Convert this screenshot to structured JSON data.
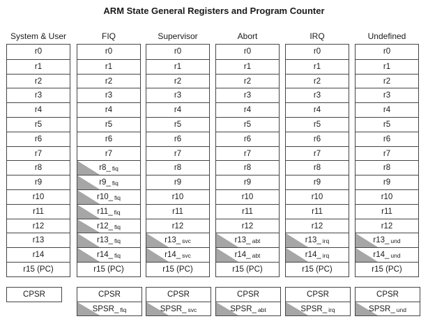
{
  "title": "ARM State General Registers and Program Counter",
  "modes": [
    {
      "name": "System & User",
      "registers": [
        {
          "base": "r0",
          "suffix": "",
          "banked": false
        },
        {
          "base": "r1",
          "suffix": "",
          "banked": false
        },
        {
          "base": "r2",
          "suffix": "",
          "banked": false
        },
        {
          "base": "r3",
          "suffix": "",
          "banked": false
        },
        {
          "base": "r4",
          "suffix": "",
          "banked": false
        },
        {
          "base": "r5",
          "suffix": "",
          "banked": false
        },
        {
          "base": "r6",
          "suffix": "",
          "banked": false
        },
        {
          "base": "r7",
          "suffix": "",
          "banked": false
        },
        {
          "base": "r8",
          "suffix": "",
          "banked": false
        },
        {
          "base": "r9",
          "suffix": "",
          "banked": false
        },
        {
          "base": "r10",
          "suffix": "",
          "banked": false
        },
        {
          "base": "r11",
          "suffix": "",
          "banked": false
        },
        {
          "base": "r12",
          "suffix": "",
          "banked": false
        },
        {
          "base": "r13",
          "suffix": "",
          "banked": false
        },
        {
          "base": "r14",
          "suffix": "",
          "banked": false
        },
        {
          "base": "r15 (PC)",
          "suffix": "",
          "banked": false
        }
      ],
      "psr": [
        {
          "base": "CPSR",
          "suffix": "",
          "banked": false
        }
      ]
    },
    {
      "name": "FIQ",
      "registers": [
        {
          "base": "r0",
          "suffix": "",
          "banked": false
        },
        {
          "base": "r1",
          "suffix": "",
          "banked": false
        },
        {
          "base": "r2",
          "suffix": "",
          "banked": false
        },
        {
          "base": "r3",
          "suffix": "",
          "banked": false
        },
        {
          "base": "r4",
          "suffix": "",
          "banked": false
        },
        {
          "base": "r5",
          "suffix": "",
          "banked": false
        },
        {
          "base": "r6",
          "suffix": "",
          "banked": false
        },
        {
          "base": "r7",
          "suffix": "",
          "banked": false
        },
        {
          "base": "r8_",
          "suffix": "fiq",
          "banked": true
        },
        {
          "base": "r9_",
          "suffix": "fiq",
          "banked": true
        },
        {
          "base": "r10_",
          "suffix": "fiq",
          "banked": true
        },
        {
          "base": "r11_",
          "suffix": "fiq",
          "banked": true
        },
        {
          "base": "r12_",
          "suffix": "fiq",
          "banked": true
        },
        {
          "base": "r13_",
          "suffix": "fiq",
          "banked": true
        },
        {
          "base": "r14_",
          "suffix": "fiq",
          "banked": true
        },
        {
          "base": "r15 (PC)",
          "suffix": "",
          "banked": false
        }
      ],
      "psr": [
        {
          "base": "CPSR",
          "suffix": "",
          "banked": false
        },
        {
          "base": "SPSR_",
          "suffix": "fiq",
          "banked": true
        }
      ]
    },
    {
      "name": "Supervisor",
      "registers": [
        {
          "base": "r0",
          "suffix": "",
          "banked": false
        },
        {
          "base": "r1",
          "suffix": "",
          "banked": false
        },
        {
          "base": "r2",
          "suffix": "",
          "banked": false
        },
        {
          "base": "r3",
          "suffix": "",
          "banked": false
        },
        {
          "base": "r4",
          "suffix": "",
          "banked": false
        },
        {
          "base": "r5",
          "suffix": "",
          "banked": false
        },
        {
          "base": "r6",
          "suffix": "",
          "banked": false
        },
        {
          "base": "r7",
          "suffix": "",
          "banked": false
        },
        {
          "base": "r8",
          "suffix": "",
          "banked": false
        },
        {
          "base": "r9",
          "suffix": "",
          "banked": false
        },
        {
          "base": "r10",
          "suffix": "",
          "banked": false
        },
        {
          "base": "r11",
          "suffix": "",
          "banked": false
        },
        {
          "base": "r12",
          "suffix": "",
          "banked": false
        },
        {
          "base": "r13_",
          "suffix": "svc",
          "banked": true
        },
        {
          "base": "r14_",
          "suffix": "svc",
          "banked": true
        },
        {
          "base": "r15 (PC)",
          "suffix": "",
          "banked": false
        }
      ],
      "psr": [
        {
          "base": "CPSR",
          "suffix": "",
          "banked": false
        },
        {
          "base": "SPSR_",
          "suffix": "svc",
          "banked": true
        }
      ]
    },
    {
      "name": "Abort",
      "registers": [
        {
          "base": "r0",
          "suffix": "",
          "banked": false
        },
        {
          "base": "r1",
          "suffix": "",
          "banked": false
        },
        {
          "base": "r2",
          "suffix": "",
          "banked": false
        },
        {
          "base": "r3",
          "suffix": "",
          "banked": false
        },
        {
          "base": "r4",
          "suffix": "",
          "banked": false
        },
        {
          "base": "r5",
          "suffix": "",
          "banked": false
        },
        {
          "base": "r6",
          "suffix": "",
          "banked": false
        },
        {
          "base": "r7",
          "suffix": "",
          "banked": false
        },
        {
          "base": "r8",
          "suffix": "",
          "banked": false
        },
        {
          "base": "r9",
          "suffix": "",
          "banked": false
        },
        {
          "base": "r10",
          "suffix": "",
          "banked": false
        },
        {
          "base": "r11",
          "suffix": "",
          "banked": false
        },
        {
          "base": "r12",
          "suffix": "",
          "banked": false
        },
        {
          "base": "r13_",
          "suffix": "abt",
          "banked": true
        },
        {
          "base": "r14_",
          "suffix": "abt",
          "banked": true
        },
        {
          "base": "r15 (PC)",
          "suffix": "",
          "banked": false
        }
      ],
      "psr": [
        {
          "base": "CPSR",
          "suffix": "",
          "banked": false
        },
        {
          "base": "SPSR_",
          "suffix": "abt",
          "banked": true
        }
      ]
    },
    {
      "name": "IRQ",
      "registers": [
        {
          "base": "r0",
          "suffix": "",
          "banked": false
        },
        {
          "base": "r1",
          "suffix": "",
          "banked": false
        },
        {
          "base": "r2",
          "suffix": "",
          "banked": false
        },
        {
          "base": "r3",
          "suffix": "",
          "banked": false
        },
        {
          "base": "r4",
          "suffix": "",
          "banked": false
        },
        {
          "base": "r5",
          "suffix": "",
          "banked": false
        },
        {
          "base": "r6",
          "suffix": "",
          "banked": false
        },
        {
          "base": "r7",
          "suffix": "",
          "banked": false
        },
        {
          "base": "r8",
          "suffix": "",
          "banked": false
        },
        {
          "base": "r9",
          "suffix": "",
          "banked": false
        },
        {
          "base": "r10",
          "suffix": "",
          "banked": false
        },
        {
          "base": "r11",
          "suffix": "",
          "banked": false
        },
        {
          "base": "r12",
          "suffix": "",
          "banked": false
        },
        {
          "base": "r13_",
          "suffix": "irq",
          "banked": true
        },
        {
          "base": "r14_",
          "suffix": "irq",
          "banked": true
        },
        {
          "base": "r15 (PC)",
          "suffix": "",
          "banked": false
        }
      ],
      "psr": [
        {
          "base": "CPSR",
          "suffix": "",
          "banked": false
        },
        {
          "base": "SPSR_",
          "suffix": "irq",
          "banked": true
        }
      ]
    },
    {
      "name": "Undefined",
      "registers": [
        {
          "base": "r0",
          "suffix": "",
          "banked": false
        },
        {
          "base": "r1",
          "suffix": "",
          "banked": false
        },
        {
          "base": "r2",
          "suffix": "",
          "banked": false
        },
        {
          "base": "r3",
          "suffix": "",
          "banked": false
        },
        {
          "base": "r4",
          "suffix": "",
          "banked": false
        },
        {
          "base": "r5",
          "suffix": "",
          "banked": false
        },
        {
          "base": "r6",
          "suffix": "",
          "banked": false
        },
        {
          "base": "r7",
          "suffix": "",
          "banked": false
        },
        {
          "base": "r8",
          "suffix": "",
          "banked": false
        },
        {
          "base": "r9",
          "suffix": "",
          "banked": false
        },
        {
          "base": "r10",
          "suffix": "",
          "banked": false
        },
        {
          "base": "r11",
          "suffix": "",
          "banked": false
        },
        {
          "base": "r12",
          "suffix": "",
          "banked": false
        },
        {
          "base": "r13_",
          "suffix": "und",
          "banked": true
        },
        {
          "base": "r14_",
          "suffix": "und",
          "banked": true
        },
        {
          "base": "r15 (PC)",
          "suffix": "",
          "banked": false
        }
      ],
      "psr": [
        {
          "base": "CPSR",
          "suffix": "",
          "banked": false
        },
        {
          "base": "SPSR_",
          "suffix": "und",
          "banked": true
        }
      ]
    }
  ],
  "colors": {
    "banked_shade": "#a6a6a6",
    "border": "#444444"
  }
}
